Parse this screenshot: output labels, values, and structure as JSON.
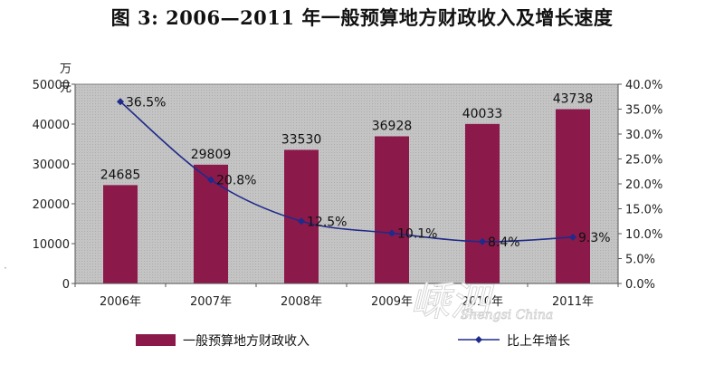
{
  "title": "图 3:  2006—2011 年一般预算地方财政收入及增长速度",
  "y_unit": [
    "万",
    "元"
  ],
  "watermark": {
    "main": "嵊泗",
    "sub": "Shengsi China"
  },
  "colors": {
    "bar": "#8b1a4b",
    "line": "#1f2a8a",
    "plot_bg": "#c0c0c0"
  },
  "chart_data": {
    "type": "bar",
    "categories": [
      "2006年",
      "2007年",
      "2008年",
      "2009年",
      "2010年",
      "2011年"
    ],
    "series": [
      {
        "name": "一般预算地方财政收入",
        "type": "bar",
        "axis": "left",
        "values": [
          24685,
          29809,
          33530,
          36928,
          40033,
          43738
        ],
        "labels": [
          "24685",
          "29809",
          "33530",
          "36928",
          "40033",
          "43738"
        ]
      },
      {
        "name": "比上年增长",
        "type": "line",
        "axis": "right",
        "values": [
          36.5,
          20.8,
          12.5,
          10.1,
          8.4,
          9.3
        ],
        "labels": [
          "36.5%",
          "20.8%",
          "12.5%",
          "10.1%",
          "8.4%",
          "9.3%"
        ]
      }
    ],
    "ylim_left": [
      0,
      50000
    ],
    "yticks_left": [
      "0",
      "10000",
      "20000",
      "30000",
      "40000",
      "50000"
    ],
    "ylim_right": [
      0,
      40
    ],
    "yticks_right": [
      "0.0%",
      "5.0%",
      "10.0%",
      "15.0%",
      "20.0%",
      "25.0%",
      "30.0%",
      "35.0%",
      "40.0%"
    ],
    "legend": "bottom",
    "grid": false
  }
}
